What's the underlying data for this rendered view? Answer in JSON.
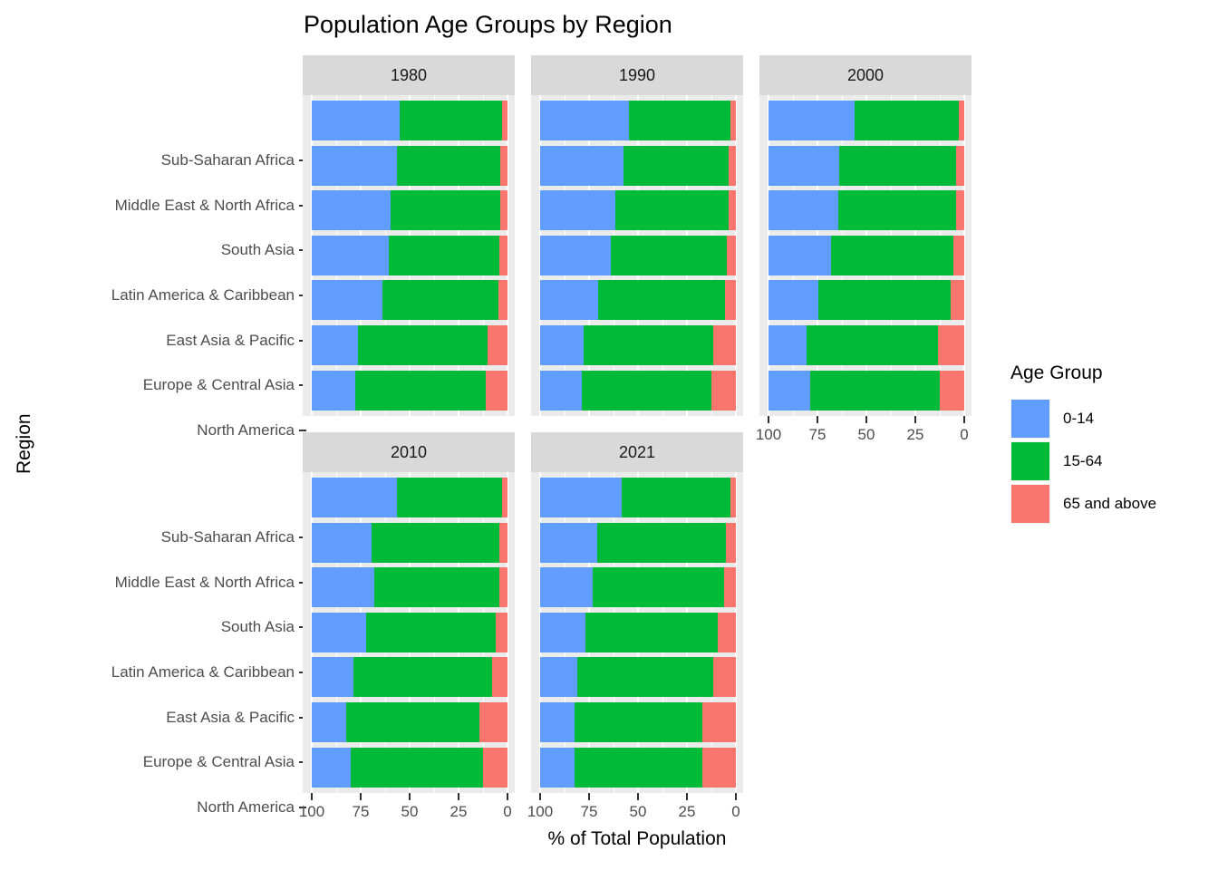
{
  "title": "Population Age Groups by Region",
  "y_axis_title": "Region",
  "x_axis_title": "% of Total Population",
  "legend": {
    "title": "Age Group",
    "items": [
      {
        "label": "0-14",
        "color": "#619CFF"
      },
      {
        "label": "15-64",
        "color": "#00BA38"
      },
      {
        "label": "65 and above",
        "color": "#F8766D"
      }
    ]
  },
  "colors": {
    "panel_background": "#EBEBEB",
    "strip_background": "#D9D9D9",
    "gridline": "#FFFFFF",
    "axis_text": "#4D4D4D",
    "tick_mark": "#333333"
  },
  "chart_data": {
    "type": "bar",
    "subtype": "horizontal-stacked-percent",
    "title": "Population Age Groups by Region",
    "xlabel": "% of Total Population",
    "ylabel": "Region",
    "facet_by": "year",
    "x_axis_reversed": true,
    "xlim": [
      100,
      0
    ],
    "x_ticks": [
      "100",
      "75",
      "50",
      "25",
      "0"
    ],
    "grid": "major-and-minor-white",
    "legend_position": "right",
    "age_groups": [
      "0-14",
      "15-64",
      "65 and above"
    ],
    "categories": [
      "Sub-Saharan Africa",
      "Middle East & North Africa",
      "South Asia",
      "Latin America & Caribbean",
      "East Asia & Pacific",
      "Europe & Central Asia",
      "North America"
    ],
    "facets": [
      {
        "year": "1980",
        "rows": [
          [
            45.0,
            52.0,
            3.0
          ],
          [
            43.5,
            53.0,
            3.5
          ],
          [
            40.3,
            56.0,
            3.7
          ],
          [
            39.4,
            56.3,
            4.3
          ],
          [
            36.0,
            59.3,
            4.7
          ],
          [
            23.8,
            66.0,
            10.2
          ],
          [
            22.4,
            66.3,
            11.3
          ]
        ]
      },
      {
        "year": "1990",
        "rows": [
          [
            45.5,
            51.5,
            3.0
          ],
          [
            42.6,
            53.7,
            3.7
          ],
          [
            38.4,
            57.9,
            3.7
          ],
          [
            36.1,
            59.1,
            4.8
          ],
          [
            29.6,
            64.8,
            5.6
          ],
          [
            22.3,
            66.2,
            11.5
          ],
          [
            21.3,
            66.3,
            12.4
          ]
        ]
      },
      {
        "year": "2000",
        "rows": [
          [
            44.2,
            52.8,
            3.0
          ],
          [
            36.3,
            59.7,
            4.0
          ],
          [
            35.8,
            60.0,
            4.2
          ],
          [
            32.1,
            62.5,
            5.4
          ],
          [
            25.6,
            67.6,
            6.8
          ],
          [
            19.4,
            67.3,
            13.3
          ],
          [
            21.4,
            66.1,
            12.5
          ]
        ]
      },
      {
        "year": "2010",
        "rows": [
          [
            43.7,
            53.3,
            3.0
          ],
          [
            30.7,
            65.2,
            4.1
          ],
          [
            32.1,
            63.7,
            4.2
          ],
          [
            27.9,
            65.9,
            6.2
          ],
          [
            21.1,
            71.0,
            7.9
          ],
          [
            17.5,
            68.0,
            14.5
          ],
          [
            19.8,
            67.5,
            12.7
          ]
        ]
      },
      {
        "year": "2021",
        "rows": [
          [
            41.5,
            55.5,
            3.0
          ],
          [
            29.3,
            65.4,
            5.3
          ],
          [
            27.0,
            67.1,
            5.9
          ],
          [
            23.3,
            67.4,
            9.3
          ],
          [
            19.1,
            69.1,
            11.8
          ],
          [
            17.7,
            65.4,
            16.9
          ],
          [
            17.7,
            65.1,
            17.2
          ]
        ]
      }
    ]
  }
}
